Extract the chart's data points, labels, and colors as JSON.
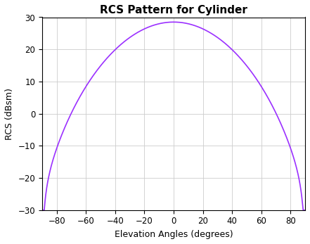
{
  "title": "RCS Pattern for Cylinder",
  "xlabel": "Elevation Angles (degrees)",
  "ylabel": "RCS (dBsm)",
  "xlim": [
    -90,
    90
  ],
  "ylim": [
    -30,
    30
  ],
  "xticks": [
    -80,
    -60,
    -40,
    -20,
    0,
    20,
    40,
    60,
    80
  ],
  "yticks": [
    -30,
    -20,
    -10,
    0,
    10,
    20,
    30
  ],
  "line_color": "#9B30FF",
  "line_width": 1.2,
  "background_color": "#ffffff",
  "grid_color": "#cccccc",
  "title_fontsize": 11,
  "axis_label_fontsize": 9,
  "tick_fontsize": 8.5,
  "peak_dBsm": 28.5,
  "cos_power": 2.0,
  "sinc_power": 2.0,
  "height_factor": 0.15
}
